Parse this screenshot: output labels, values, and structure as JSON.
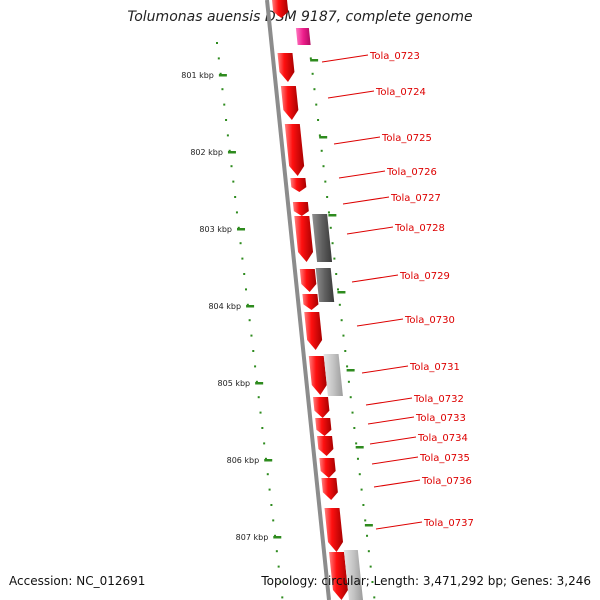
{
  "title": "Tolumonas auensis DSM 9187, complete genome",
  "accession": "Accession: NC_012691",
  "topology": "Topology: circular; Length: 3,471,292 bp; Genes: 3,246",
  "colors": {
    "backbone": "#8c8c8c",
    "cds_forward": "#ff0000",
    "cds_highlight": "#e6127c",
    "cds_dark": "#555555",
    "cds_light": "#bdbdbd",
    "tick": "#2e8b1e",
    "label": "#dd0000"
  },
  "scale_labels": [
    "801 kbp",
    "802 kbp",
    "803 kbp",
    "804 kbp",
    "805 kbp",
    "806 kbp",
    "807 kbp"
  ],
  "gene_labels": [
    "Tola_0723",
    "Tola_0724",
    "Tola_0725",
    "Tola_0726",
    "Tola_0727",
    "Tola_0728",
    "Tola_0729",
    "Tola_0730",
    "Tola_0731",
    "Tola_0732",
    "Tola_0733",
    "Tola_0734",
    "Tola_0735",
    "Tola_0736",
    "Tola_0737"
  ]
}
